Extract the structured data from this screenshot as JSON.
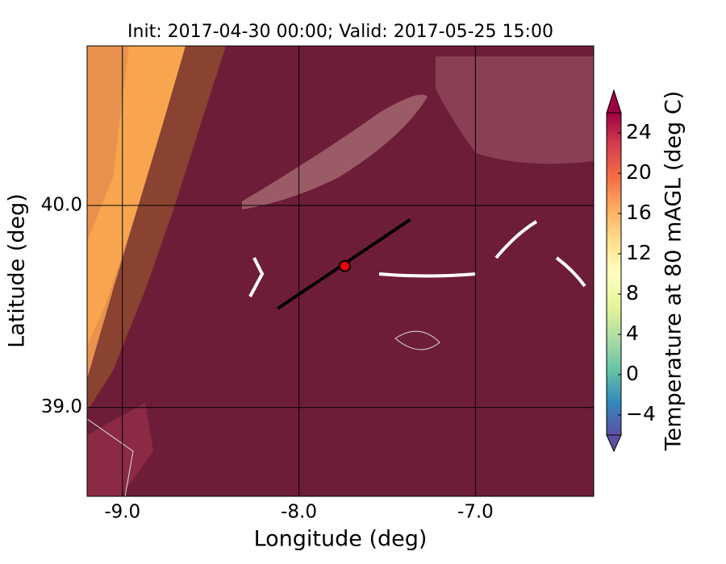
{
  "chart_data": {
    "type": "map",
    "title": "Init: 2017-04-30 00:00; Valid: 2017-05-25 15:00",
    "x_label": "Longitude (deg)",
    "y_label": "Latitude (deg)",
    "xlim": [
      -9.2,
      -6.33
    ],
    "ylim": [
      38.56,
      40.79
    ],
    "xticks": [
      {
        "value": -9,
        "label": "-9.0"
      },
      {
        "value": -8,
        "label": "-8.0"
      },
      {
        "value": -7,
        "label": "-7.0"
      }
    ],
    "yticks": [
      {
        "value": 39,
        "label": "39.0"
      },
      {
        "value": 40,
        "label": "40.0"
      }
    ],
    "grid": true,
    "section": {
      "x": [
        -8.12,
        -7.37
      ],
      "y": [
        39.49,
        39.93
      ]
    },
    "point": {
      "x": -7.74,
      "y": 39.7
    },
    "colorbar": {
      "label": "Temperature at 80 mAGL (deg C)",
      "clim": [
        -6,
        26
      ],
      "ticks": [
        {
          "value": -4,
          "label": "−4"
        },
        0,
        4,
        8,
        12,
        16,
        20,
        24
      ]
    }
  }
}
